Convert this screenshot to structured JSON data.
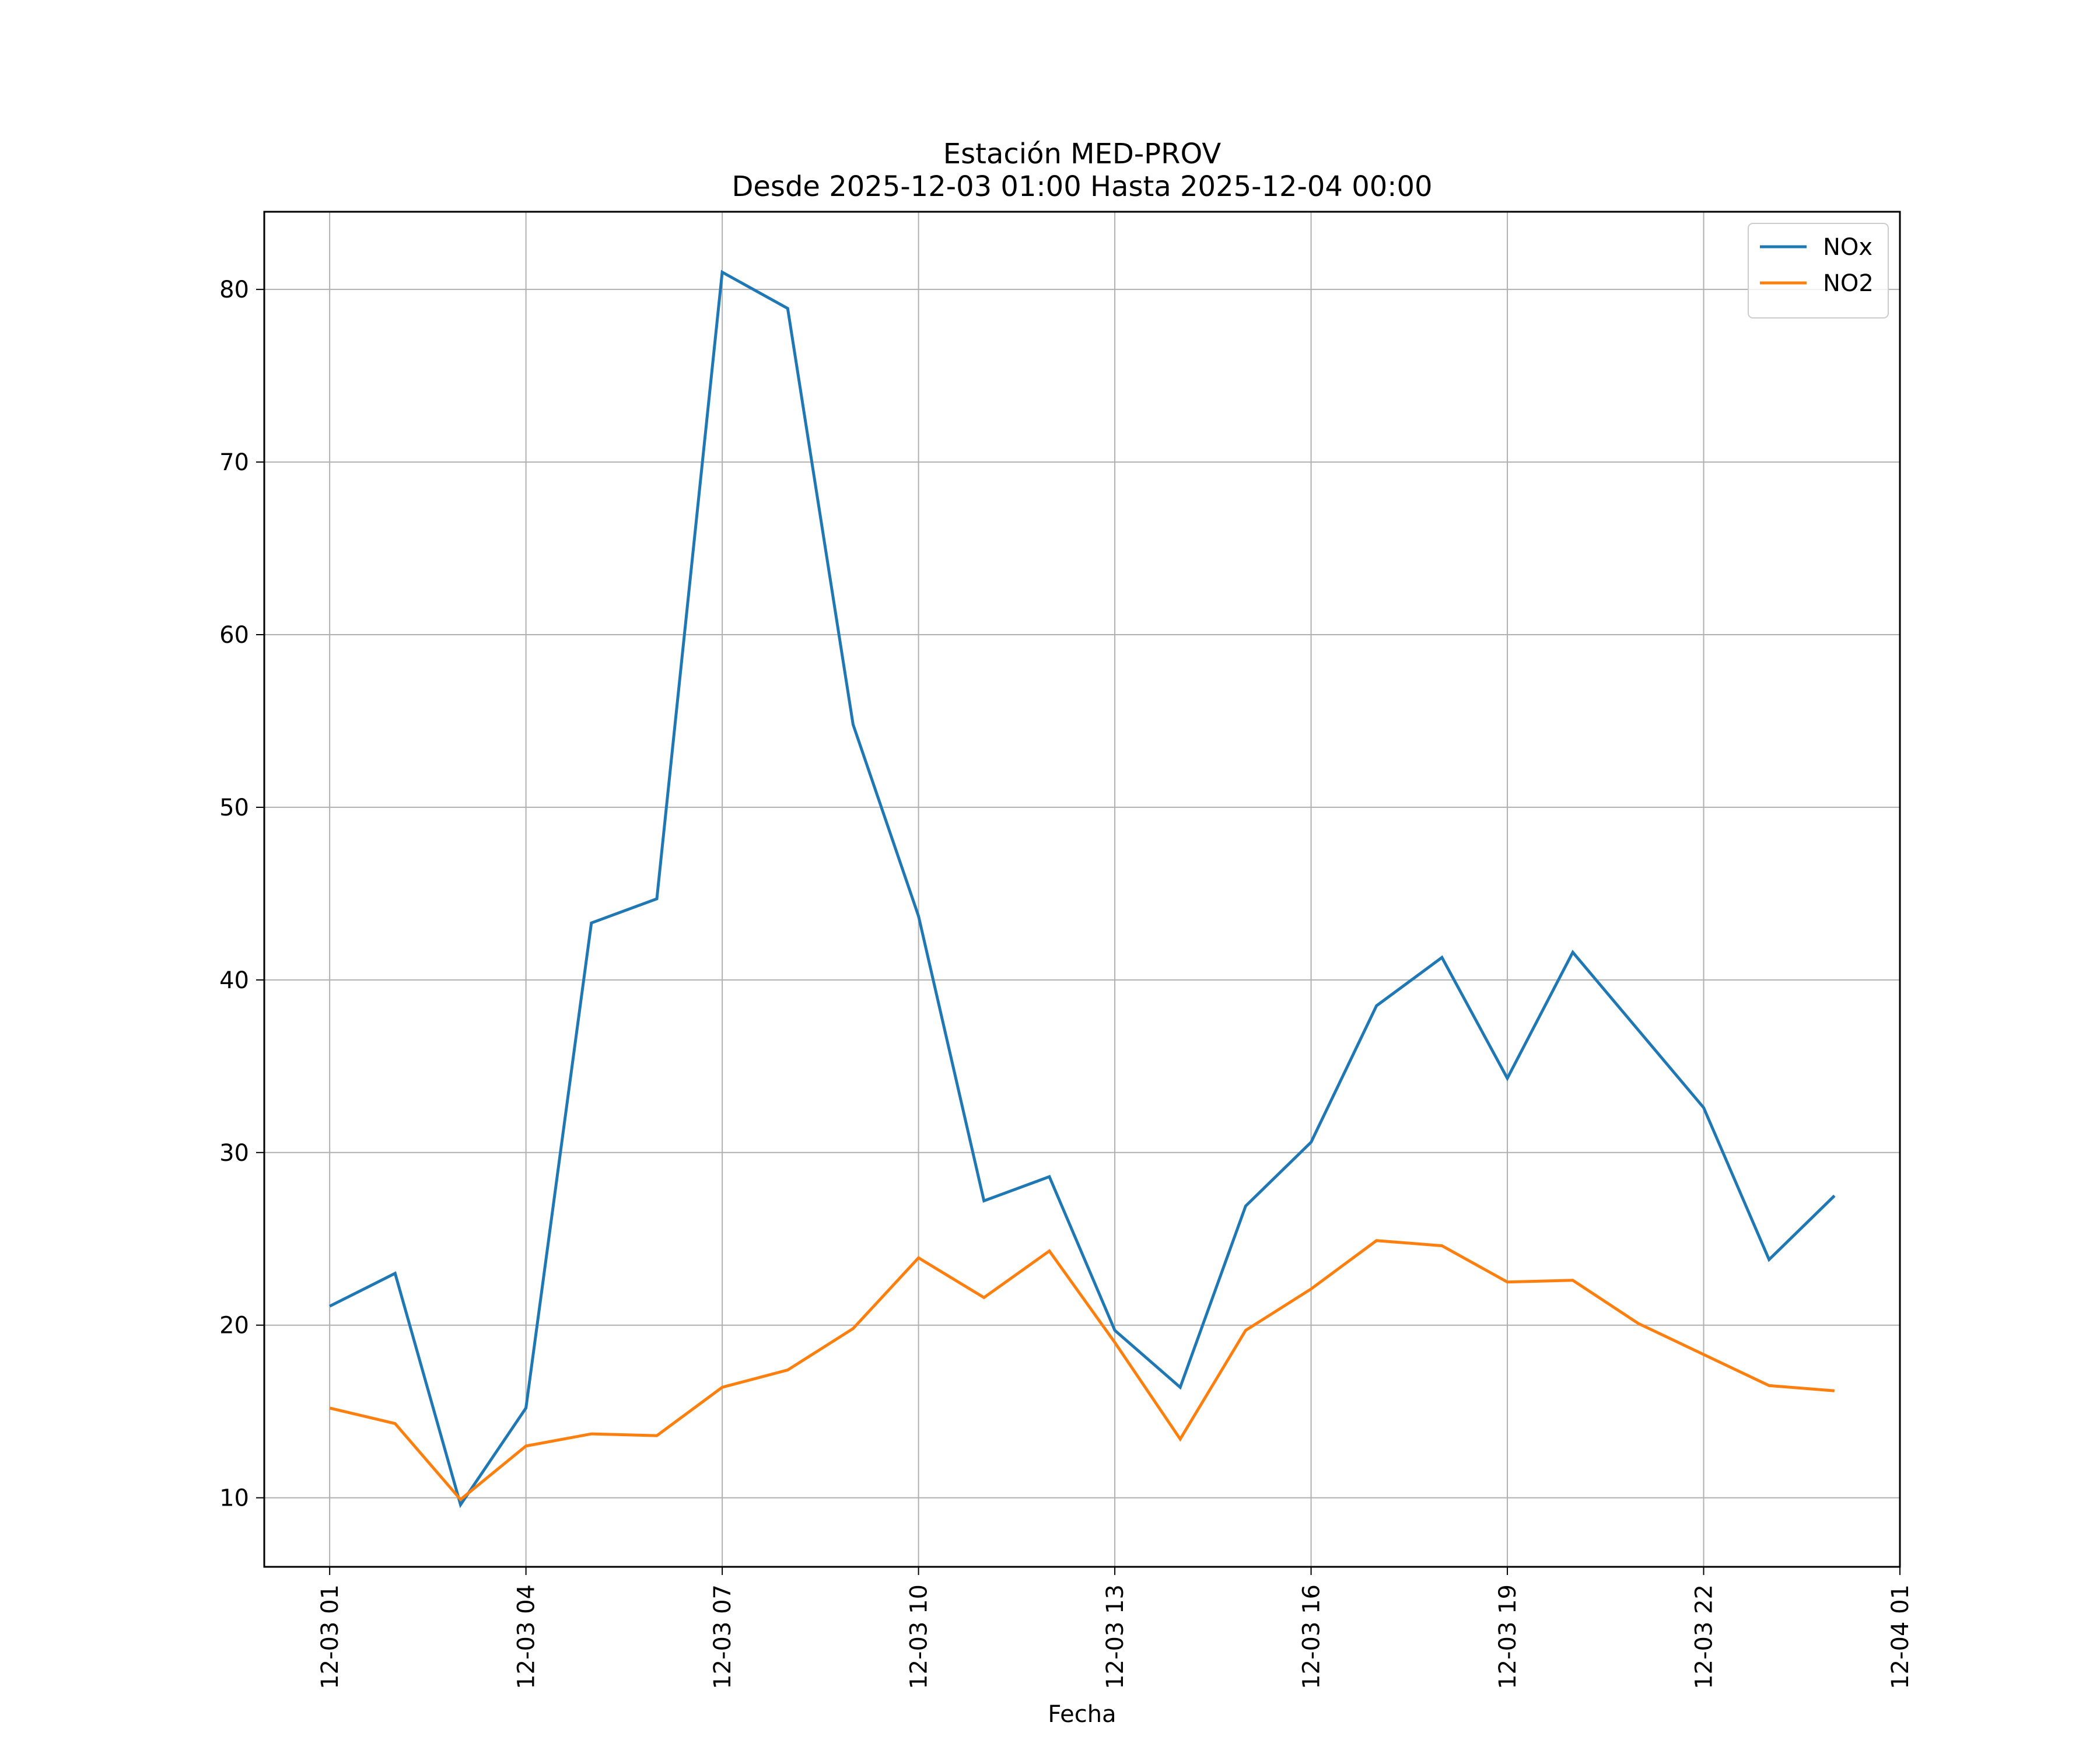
{
  "chart_data": {
    "type": "line",
    "title": "Estación MED-PROV",
    "subtitle": "Desde 2025-12-03 01:00 Hasta 2025-12-04 00:00",
    "xlabel": "Fecha",
    "ylabel": "",
    "x": [
      "2025-12-03 01:00",
      "2025-12-03 02:00",
      "2025-12-03 03:00",
      "2025-12-03 04:00",
      "2025-12-03 05:00",
      "2025-12-03 06:00",
      "2025-12-03 07:00",
      "2025-12-03 08:00",
      "2025-12-03 09:00",
      "2025-12-03 10:00",
      "2025-12-03 11:00",
      "2025-12-03 12:00",
      "2025-12-03 13:00",
      "2025-12-03 14:00",
      "2025-12-03 15:00",
      "2025-12-03 16:00",
      "2025-12-03 17:00",
      "2025-12-03 18:00",
      "2025-12-03 19:00",
      "2025-12-03 20:00",
      "2025-12-03 21:00",
      "2025-12-03 22:00",
      "2025-12-03 23:00",
      "2025-12-04 00:00"
    ],
    "series": [
      {
        "name": "NOx",
        "color": "#1f77b4",
        "values": [
          21.1,
          23.0,
          9.6,
          15.2,
          43.3,
          44.7,
          81.0,
          78.9,
          54.8,
          43.7,
          27.2,
          28.6,
          19.7,
          16.4,
          26.9,
          30.6,
          38.5,
          41.3,
          34.3,
          41.6,
          37.1,
          32.6,
          23.8,
          27.5
        ]
      },
      {
        "name": "NO2",
        "color": "#ff7f0e",
        "values": [
          15.2,
          14.3,
          9.9,
          13.0,
          13.7,
          13.6,
          16.4,
          17.4,
          19.8,
          23.9,
          21.6,
          24.3,
          19.0,
          13.4,
          19.7,
          22.1,
          24.9,
          24.6,
          22.5,
          22.6,
          20.1,
          18.3,
          16.5,
          16.2
        ]
      }
    ],
    "x_ticks": [
      "12-03 01",
      "12-03 04",
      "12-03 07",
      "12-03 10",
      "12-03 13",
      "12-03 16",
      "12-03 19",
      "12-03 22",
      "12-04 01"
    ],
    "x_tick_values": [
      "2025-12-03 01:00",
      "2025-12-03 04:00",
      "2025-12-03 07:00",
      "2025-12-03 10:00",
      "2025-12-03 13:00",
      "2025-12-03 16:00",
      "2025-12-03 19:00",
      "2025-12-03 22:00",
      "2025-12-04 01:00"
    ],
    "y_ticks": [
      10,
      20,
      30,
      40,
      50,
      60,
      70,
      80
    ],
    "xlim": [
      "2025-12-03 00:00",
      "2025-12-04 01:00"
    ],
    "ylim": [
      6.0,
      84.5
    ],
    "grid": true,
    "legend": "top-right"
  }
}
